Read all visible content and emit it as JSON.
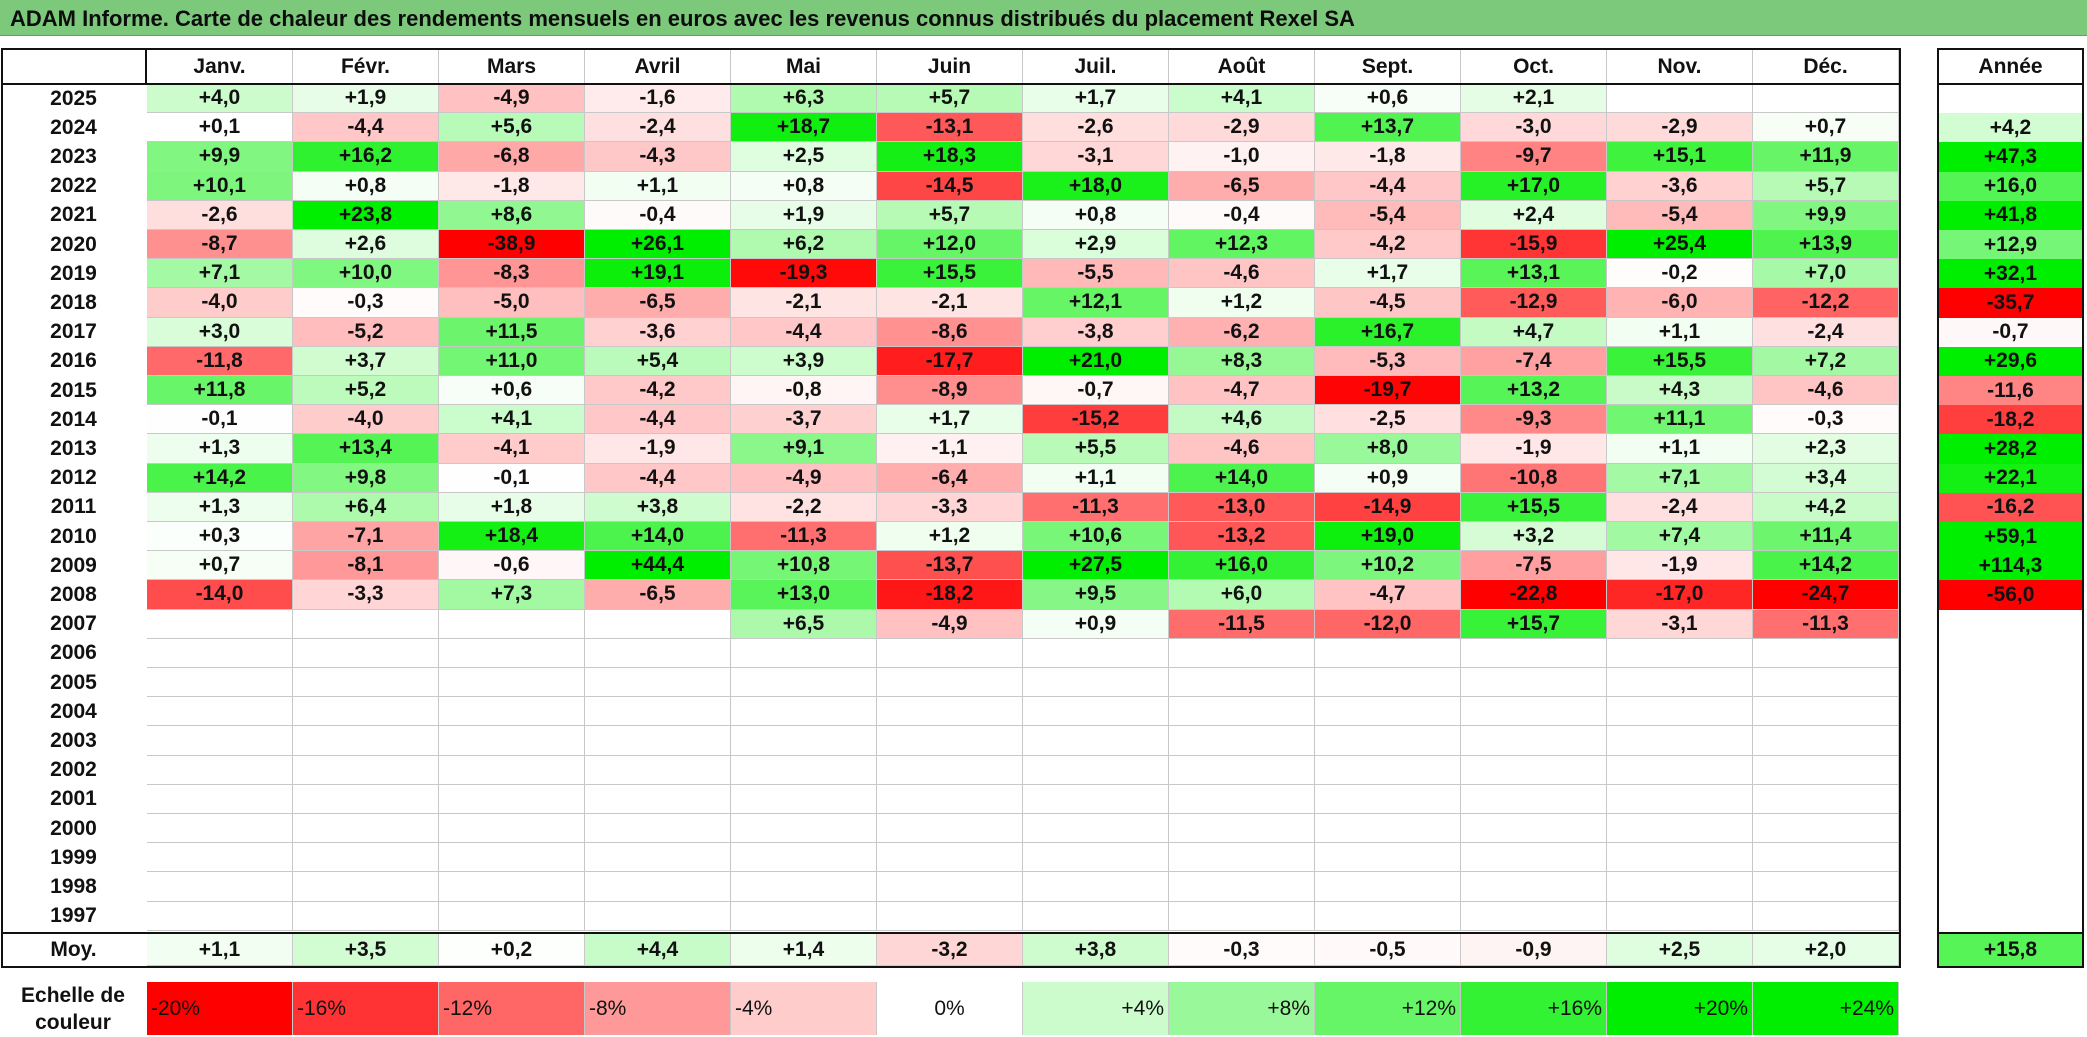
{
  "title": "ADAM Informe. Carte de chaleur des rendements mensuels en euros avec les revenus connus distribués du placement Rexel SA",
  "chart_data": {
    "type": "heatmap",
    "title": "ADAM Informe. Carte de chaleur des rendements mensuels en euros avec les revenus connus distribués du placement Rexel SA",
    "months": [
      "Janv.",
      "Févr.",
      "Mars",
      "Avril",
      "Mai",
      "Juin",
      "Juil.",
      "Août",
      "Sept.",
      "Oct.",
      "Nov.",
      "Déc."
    ],
    "annual_header": "Année",
    "years": [
      "2025",
      "2024",
      "2023",
      "2022",
      "2021",
      "2020",
      "2019",
      "2018",
      "2017",
      "2016",
      "2015",
      "2014",
      "2013",
      "2012",
      "2011",
      "2010",
      "2009",
      "2008",
      "2007",
      "2006",
      "2005",
      "2004",
      "2003",
      "2002",
      "2001",
      "2000",
      "1999",
      "1998",
      "1997"
    ],
    "values": [
      [
        "+4,0",
        "+1,9",
        "-4,9",
        "-1,6",
        "+6,3",
        "+5,7",
        "+1,7",
        "+4,1",
        "+0,6",
        "+2,1",
        "",
        ""
      ],
      [
        "+0,1",
        "-4,4",
        "+5,6",
        "-2,4",
        "+18,7",
        "-13,1",
        "-2,6",
        "-2,9",
        "+13,7",
        "-3,0",
        "-2,9",
        "+0,7"
      ],
      [
        "+9,9",
        "+16,2",
        "-6,8",
        "-4,3",
        "+2,5",
        "+18,3",
        "-3,1",
        "-1,0",
        "-1,8",
        "-9,7",
        "+15,1",
        "+11,9"
      ],
      [
        "+10,1",
        "+0,8",
        "-1,8",
        "+1,1",
        "+0,8",
        "-14,5",
        "+18,0",
        "-6,5",
        "-4,4",
        "+17,0",
        "-3,6",
        "+5,7"
      ],
      [
        "-2,6",
        "+23,8",
        "+8,6",
        "-0,4",
        "+1,9",
        "+5,7",
        "+0,8",
        "-0,4",
        "-5,4",
        "+2,4",
        "-5,4",
        "+9,9"
      ],
      [
        "-8,7",
        "+2,6",
        "-38,9",
        "+26,1",
        "+6,2",
        "+12,0",
        "+2,9",
        "+12,3",
        "-4,2",
        "-15,9",
        "+25,4",
        "+13,9"
      ],
      [
        "+7,1",
        "+10,0",
        "-8,3",
        "+19,1",
        "-19,3",
        "+15,5",
        "-5,5",
        "-4,6",
        "+1,7",
        "+13,1",
        "-0,2",
        "+7,0"
      ],
      [
        "-4,0",
        "-0,3",
        "-5,0",
        "-6,5",
        "-2,1",
        "-2,1",
        "+12,1",
        "+1,2",
        "-4,5",
        "-12,9",
        "-6,0",
        "-12,2"
      ],
      [
        "+3,0",
        "-5,2",
        "+11,5",
        "-3,6",
        "-4,4",
        "-8,6",
        "-3,8",
        "-6,2",
        "+16,7",
        "+4,7",
        "+1,1",
        "-2,4"
      ],
      [
        "-11,8",
        "+3,7",
        "+11,0",
        "+5,4",
        "+3,9",
        "-17,7",
        "+21,0",
        "+8,3",
        "-5,3",
        "-7,4",
        "+15,5",
        "+7,2"
      ],
      [
        "+11,8",
        "+5,2",
        "+0,6",
        "-4,2",
        "-0,8",
        "-8,9",
        "-0,7",
        "-4,7",
        "-19,7",
        "+13,2",
        "+4,3",
        "-4,6"
      ],
      [
        "-0,1",
        "-4,0",
        "+4,1",
        "-4,4",
        "-3,7",
        "+1,7",
        "-15,2",
        "+4,6",
        "-2,5",
        "-9,3",
        "+11,1",
        "-0,3"
      ],
      [
        "+1,3",
        "+13,4",
        "-4,1",
        "-1,9",
        "+9,1",
        "-1,1",
        "+5,5",
        "-4,6",
        "+8,0",
        "-1,9",
        "+1,1",
        "+2,3"
      ],
      [
        "+14,2",
        "+9,8",
        "-0,1",
        "-4,4",
        "-4,9",
        "-6,4",
        "+1,1",
        "+14,0",
        "+0,9",
        "-10,8",
        "+7,1",
        "+3,4"
      ],
      [
        "+1,3",
        "+6,4",
        "+1,8",
        "+3,8",
        "-2,2",
        "-3,3",
        "-11,3",
        "-13,0",
        "-14,9",
        "+15,5",
        "-2,4",
        "+4,2"
      ],
      [
        "+0,3",
        "-7,1",
        "+18,4",
        "+14,0",
        "-11,3",
        "+1,2",
        "+10,6",
        "-13,2",
        "+19,0",
        "+3,2",
        "+7,4",
        "+11,4"
      ],
      [
        "+0,7",
        "-8,1",
        "-0,6",
        "+44,4",
        "+10,8",
        "-13,7",
        "+27,5",
        "+16,0",
        "+10,2",
        "-7,5",
        "-1,9",
        "+14,2"
      ],
      [
        "-14,0",
        "-3,3",
        "+7,3",
        "-6,5",
        "+13,0",
        "-18,2",
        "+9,5",
        "+6,0",
        "-4,7",
        "-22,8",
        "-17,0",
        "-24,7"
      ],
      [
        "",
        "",
        "",
        "",
        "+6,5",
        "-4,9",
        "+0,9",
        "-11,5",
        "-12,0",
        "+15,7",
        "-3,1",
        "-11,3"
      ],
      [
        "",
        "",
        "",
        "",
        "",
        "",
        "",
        "",
        "",
        "",
        "",
        ""
      ],
      [
        "",
        "",
        "",
        "",
        "",
        "",
        "",
        "",
        "",
        "",
        "",
        ""
      ],
      [
        "",
        "",
        "",
        "",
        "",
        "",
        "",
        "",
        "",
        "",
        "",
        ""
      ],
      [
        "",
        "",
        "",
        "",
        "",
        "",
        "",
        "",
        "",
        "",
        "",
        ""
      ],
      [
        "",
        "",
        "",
        "",
        "",
        "",
        "",
        "",
        "",
        "",
        "",
        ""
      ],
      [
        "",
        "",
        "",
        "",
        "",
        "",
        "",
        "",
        "",
        "",
        "",
        ""
      ],
      [
        "",
        "",
        "",
        "",
        "",
        "",
        "",
        "",
        "",
        "",
        "",
        ""
      ],
      [
        "",
        "",
        "",
        "",
        "",
        "",
        "",
        "",
        "",
        "",
        "",
        ""
      ],
      [
        "",
        "",
        "",
        "",
        "",
        "",
        "",
        "",
        "",
        "",
        "",
        ""
      ],
      [
        "",
        "",
        "",
        "",
        "",
        "",
        "",
        "",
        "",
        "",
        "",
        ""
      ]
    ],
    "annual": [
      "",
      "+4,2",
      "+47,3",
      "+16,0",
      "+41,8",
      "+12,9",
      "+32,1",
      "-35,7",
      "-0,7",
      "+29,6",
      "-11,6",
      "-18,2",
      "+28,2",
      "+22,1",
      "-16,2",
      "+59,1",
      "+114,3",
      "-56,0",
      "",
      "",
      "",
      "",
      "",
      "",
      "",
      "",
      "",
      "",
      ""
    ],
    "average_label": "Moy.",
    "averages": [
      "+1,1",
      "+3,5",
      "+0,2",
      "+4,4",
      "+1,4",
      "-3,2",
      "+3,8",
      "-0,3",
      "-0,5",
      "-0,9",
      "+2,5",
      "+2,0"
    ],
    "average_annual": "+15,8",
    "color_scale": {
      "label_line1": "Echelle de",
      "label_line2": "couleur",
      "steps": [
        "-20%",
        "-16%",
        "-12%",
        "-8%",
        "-4%",
        "0%",
        "+4%",
        "+8%",
        "+12%",
        "+16%",
        "+20%",
        "+24%"
      ],
      "step_values": [
        -20,
        -16,
        -12,
        -8,
        -4,
        0,
        4,
        8,
        12,
        16,
        20,
        24
      ],
      "negative_color": "#ff0000",
      "neutral_color": "#ffffff",
      "positive_color": "#00ee00"
    }
  }
}
